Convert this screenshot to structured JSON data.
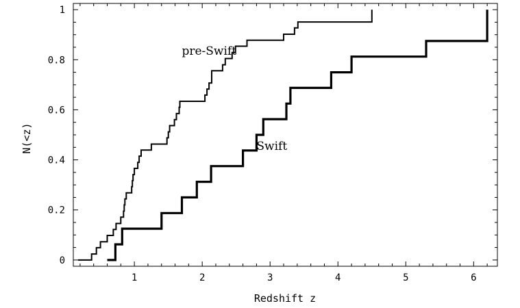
{
  "chart_data": {
    "type": "line",
    "title": "",
    "xlabel": "Redshift z",
    "ylabel": "N(<z)",
    "xlim": [
      0.1,
      6.35
    ],
    "ylim": [
      -0.025,
      1.025
    ],
    "xticks": [
      1,
      2,
      3,
      4,
      5,
      6
    ],
    "xtick_labels": [
      "1",
      "2",
      "3",
      "4",
      "5",
      "6"
    ],
    "yticks": [
      0,
      0.2,
      0.4,
      0.6,
      0.8,
      1
    ],
    "ytick_labels": [
      "0",
      "0.2",
      "0.4",
      "0.6",
      "0.8",
      "1"
    ],
    "grid": false,
    "legend": "none",
    "series": [
      {
        "name": "pre-Swift",
        "label_position": "upper-left",
        "label_at": [
          1.7,
          0.82
        ],
        "style": "thin",
        "x": [
          0.17,
          0.37,
          0.44,
          0.5,
          0.6,
          0.69,
          0.73,
          0.8,
          0.84,
          0.85,
          0.86,
          0.88,
          0.96,
          0.97,
          0.98,
          1.0,
          1.05,
          1.07,
          1.1,
          1.25,
          1.48,
          1.5,
          1.52,
          1.59,
          1.62,
          1.66,
          1.67,
          2.04,
          2.07,
          2.1,
          2.14,
          2.14,
          2.3,
          2.34,
          2.44,
          2.49,
          2.66,
          3.2,
          3.36,
          3.41,
          4.5
        ],
        "y": [
          0.0,
          0.024,
          0.049,
          0.073,
          0.098,
          0.122,
          0.146,
          0.171,
          0.195,
          0.22,
          0.244,
          0.268,
          0.293,
          0.317,
          0.341,
          0.366,
          0.39,
          0.415,
          0.439,
          0.463,
          0.488,
          0.512,
          0.537,
          0.561,
          0.585,
          0.61,
          0.634,
          0.659,
          0.683,
          0.707,
          0.732,
          0.756,
          0.78,
          0.805,
          0.829,
          0.854,
          0.878,
          0.902,
          0.927,
          0.951,
          0.976
        ]
      },
      {
        "name": "Swift",
        "label_position": "middle",
        "label_at": [
          2.8,
          0.44
        ],
        "style": "thick",
        "x": [
          0.6,
          0.72,
          0.82,
          1.4,
          1.7,
          1.92,
          2.13,
          2.6,
          2.8,
          2.9,
          3.24,
          3.3,
          3.9,
          4.2,
          5.3,
          6.2
        ],
        "y": [
          0.0,
          0.0625,
          0.125,
          0.1875,
          0.25,
          0.3125,
          0.375,
          0.4375,
          0.5,
          0.5625,
          0.625,
          0.6875,
          0.75,
          0.8125,
          0.875,
          0.9375
        ]
      }
    ]
  }
}
